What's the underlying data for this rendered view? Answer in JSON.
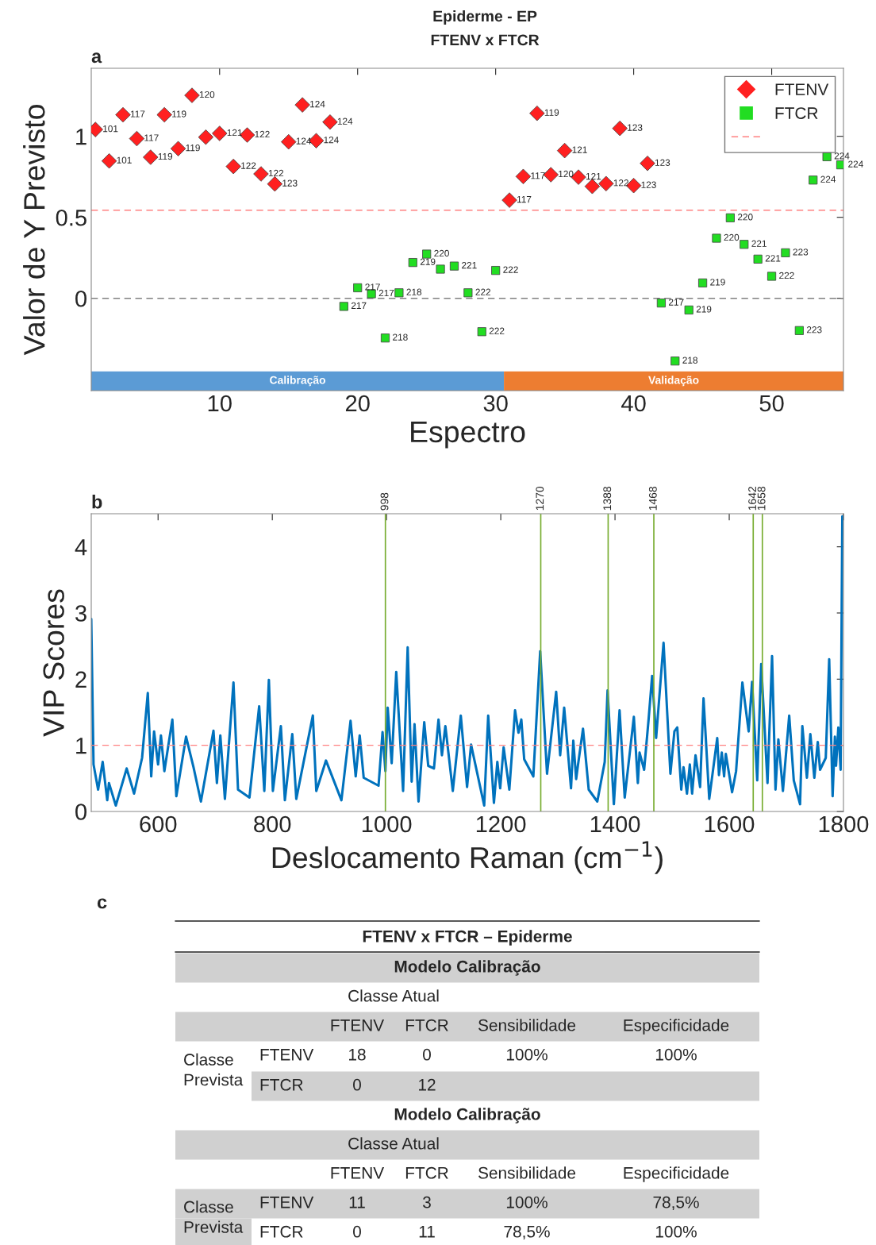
{
  "chart_data": [
    {
      "type": "scatter",
      "title": "Epiderme - EP",
      "subtitle": "FTENV x FTCR",
      "xlabel": "Espectro",
      "ylabel": "Valor de Y Previsto",
      "xlim": [
        0.7,
        55.2
      ],
      "ylim": [
        -0.57,
        1.42
      ],
      "xticks": [
        10,
        20,
        30,
        40,
        50
      ],
      "yticks": [
        0,
        0.5,
        1
      ],
      "legend": "top right",
      "series": [
        {
          "name": "FTENV",
          "color": "#ff2020",
          "marker": "diamond",
          "x": [
            1,
            2,
            3,
            4,
            5,
            6,
            7,
            8,
            9,
            10,
            11,
            12,
            13,
            14,
            15,
            16,
            17,
            18,
            31,
            32,
            33,
            34,
            35,
            36,
            37,
            38,
            39,
            40,
            41
          ],
          "values": [
            1.042,
            0.848,
            1.133,
            0.986,
            0.871,
            1.133,
            0.924,
            1.253,
            0.995,
            1.018,
            0.814,
            1.008,
            0.768,
            0.706,
            0.966,
            1.194,
            0.973,
            1.088,
            0.606,
            0.752,
            1.142,
            0.763,
            0.912,
            0.748,
            0.691,
            0.708,
            1.049,
            0.696,
            0.833
          ]
        },
        {
          "name": "FTCR",
          "color": "#22dd22",
          "marker": "square",
          "x": [
            19,
            20,
            21,
            22,
            23,
            24,
            25,
            26,
            27,
            28,
            29,
            30,
            42,
            43,
            44,
            45,
            46,
            47,
            48,
            49,
            50,
            51,
            52,
            53,
            54,
            55
          ],
          "values": [
            -0.05,
            0.065,
            0.028,
            -0.245,
            0.034,
            0.221,
            0.273,
            0.18,
            0.199,
            0.034,
            -0.206,
            0.172,
            -0.029,
            -0.387,
            -0.072,
            0.095,
            0.371,
            0.497,
            0.333,
            0.242,
            0.136,
            0.281,
            -0.199,
            0.73,
            0.874,
            0.824
          ]
        }
      ],
      "ref_lines": [
        {
          "axis": "y",
          "value": 0.544,
          "color": "#ff8080",
          "line_style": "dashed"
        },
        {
          "axis": "y",
          "value": 0,
          "color": "#808080",
          "line_style": "dashed"
        }
      ],
      "bands": [
        {
          "axis": "x",
          "from": 0.7,
          "to": 30.6,
          "label": "Calibração",
          "color": "#5b9bd5"
        },
        {
          "axis": "x",
          "from": 30.6,
          "to": 55.2,
          "label": "Validação",
          "color": "#ed7d31"
        }
      ],
      "annotations": [
        "a",
        {
          "text": "101",
          "x": 1,
          "y": 1.042
        },
        {
          "text": "101",
          "x": 2,
          "y": 0.848
        },
        {
          "text": "117",
          "x": 3,
          "y": 1.133
        },
        {
          "text": "117",
          "x": 4,
          "y": 0.986
        },
        {
          "text": "119",
          "x": 5,
          "y": 0.871
        },
        {
          "text": "119",
          "x": 6,
          "y": 1.133
        },
        {
          "text": "119",
          "x": 7,
          "y": 0.924
        },
        {
          "text": "120",
          "x": 8,
          "y": 1.253
        },
        {
          "text": "121",
          "x": 10,
          "y": 1.018
        },
        {
          "text": "122",
          "x": 11,
          "y": 0.814
        },
        {
          "text": "122",
          "x": 12,
          "y": 1.008
        },
        {
          "text": "122",
          "x": 13,
          "y": 0.768
        },
        {
          "text": "123",
          "x": 14,
          "y": 0.706
        },
        {
          "text": "124",
          "x": 15,
          "y": 0.966
        },
        {
          "text": "124",
          "x": 16,
          "y": 1.194
        },
        {
          "text": "124",
          "x": 17,
          "y": 0.973
        },
        {
          "text": "124",
          "x": 18,
          "y": 1.088
        },
        {
          "text": "117",
          "x": 31,
          "y": 0.606
        },
        {
          "text": "117",
          "x": 32,
          "y": 0.752
        },
        {
          "text": "119",
          "x": 33,
          "y": 1.142
        },
        {
          "text": "120",
          "x": 34,
          "y": 0.763
        },
        {
          "text": "121",
          "x": 35,
          "y": 0.912
        },
        {
          "text": "121",
          "x": 36,
          "y": 0.748
        },
        {
          "text": "122",
          "x": 38,
          "y": 0.708
        },
        {
          "text": "123",
          "x": 39,
          "y": 1.049
        },
        {
          "text": "123",
          "x": 40,
          "y": 0.696
        },
        {
          "text": "123",
          "x": 41,
          "y": 0.833
        },
        {
          "text": "217",
          "x": 19,
          "y": -0.05
        },
        {
          "text": "217",
          "x": 20,
          "y": 0.065
        },
        {
          "text": "217",
          "x": 21,
          "y": 0.028
        },
        {
          "text": "218",
          "x": 22,
          "y": -0.245
        },
        {
          "text": "218",
          "x": 23,
          "y": 0.034
        },
        {
          "text": "219",
          "x": 24,
          "y": 0.221
        },
        {
          "text": "220",
          "x": 25,
          "y": 0.273
        },
        {
          "text": "221",
          "x": 27,
          "y": 0.199
        },
        {
          "text": "222",
          "x": 28,
          "y": 0.034
        },
        {
          "text": "222",
          "x": 29,
          "y": -0.206
        },
        {
          "text": "222",
          "x": 30,
          "y": 0.172
        },
        {
          "text": "217",
          "x": 42,
          "y": -0.029
        },
        {
          "text": "218",
          "x": 43,
          "y": -0.387
        },
        {
          "text": "219",
          "x": 44,
          "y": -0.072
        },
        {
          "text": "219",
          "x": 45,
          "y": 0.095
        },
        {
          "text": "220",
          "x": 46,
          "y": 0.371
        },
        {
          "text": "220",
          "x": 47,
          "y": 0.497
        },
        {
          "text": "221",
          "x": 48,
          "y": 0.333
        },
        {
          "text": "221",
          "x": 49,
          "y": 0.242
        },
        {
          "text": "222",
          "x": 50,
          "y": 0.136
        },
        {
          "text": "223",
          "x": 51,
          "y": 0.281
        },
        {
          "text": "223",
          "x": 52,
          "y": -0.199
        },
        {
          "text": "224",
          "x": 53,
          "y": 0.73
        },
        {
          "text": "224",
          "x": 54,
          "y": 0.874
        },
        {
          "text": "224",
          "x": 55,
          "y": 0.824
        }
      ]
    },
    {
      "type": "line",
      "xlabel": "Deslocamento Raman (cm$^{−1}$)",
      "ylabel": "VIP Scores",
      "xlim": [
        483,
        1800
      ],
      "ylim": [
        0,
        4.5
      ],
      "xticks": [
        600,
        800,
        1000,
        1200,
        1400,
        1600,
        1800
      ],
      "yticks": [
        0,
        1,
        2,
        3,
        4
      ],
      "series": [
        {
          "color": "#0072bd",
          "x": [
            483,
            487,
            495,
            503,
            511,
            514,
            526,
            545,
            558,
            572,
            582,
            588,
            593,
            600,
            605,
            611,
            625,
            632,
            649,
            662,
            675,
            697,
            703,
            709,
            717,
            732,
            740,
            760,
            777,
            786,
            794,
            801,
            815,
            822,
            835,
            842,
            871,
            877,
            894,
            921,
            937,
            946,
            953,
            960,
            986,
            993,
            998,
            1002,
            1009,
            1017,
            1029,
            1037,
            1044,
            1049,
            1056,
            1066,
            1073,
            1083,
            1091,
            1097,
            1103,
            1116,
            1130,
            1141,
            1148,
            1171,
            1178,
            1188,
            1194,
            1199,
            1205,
            1215,
            1225,
            1231,
            1236,
            1241,
            1257,
            1269,
            1281,
            1297,
            1304,
            1311,
            1323,
            1327,
            1332,
            1335,
            1344,
            1354,
            1369,
            1382,
            1387,
            1398,
            1408,
            1417,
            1433,
            1440,
            1443,
            1451,
            1459,
            1465,
            1472,
            1485,
            1497,
            1504,
            1509,
            1516,
            1520,
            1526,
            1531,
            1535,
            1541,
            1549,
            1555,
            1565,
            1579,
            1582,
            1587,
            1591,
            1594,
            1605,
            1612,
            1623,
            1634,
            1640,
            1649,
            1656,
            1667,
            1675,
            1681,
            1686,
            1694,
            1705,
            1713,
            1724,
            1728,
            1736,
            1742,
            1749,
            1755,
            1759,
            1769,
            1775,
            1781,
            1785,
            1787,
            1791,
            1795,
            1798
          ],
          "values": [
            2.91,
            0.71,
            0.33,
            0.75,
            0.17,
            0.43,
            0.09,
            0.65,
            0.27,
            0.81,
            1.79,
            0.53,
            1.21,
            0.71,
            1.15,
            0.61,
            1.39,
            0.23,
            1.13,
            0.67,
            0.15,
            1.22,
            0.43,
            1.15,
            0.19,
            1.95,
            0.33,
            0.21,
            1.59,
            0.31,
            1.99,
            0.31,
            1.29,
            0.17,
            1.17,
            0.19,
            1.45,
            0.31,
            0.77,
            0.17,
            1.37,
            0.53,
            1.15,
            0.51,
            0.39,
            1.2,
            0.61,
            1.57,
            0.73,
            2.11,
            0.31,
            2.48,
            0.45,
            1.32,
            0.15,
            1.35,
            0.69,
            0.65,
            1.39,
            0.85,
            1.29,
            0.31,
            1.45,
            0.37,
            1.01,
            0.09,
            1.45,
            0.13,
            0.75,
            0.35,
            0.97,
            0.33,
            1.53,
            1.19,
            1.39,
            0.79,
            0.53,
            2.42,
            0.57,
            1.81,
            0.85,
            1.57,
            0.35,
            1.07,
            0.49,
            0.69,
            1.25,
            0.33,
            0.15,
            0.75,
            1.83,
            0.11,
            1.53,
            0.21,
            1.43,
            0.43,
            0.89,
            0.63,
            1.41,
            2.05,
            1.11,
            2.55,
            0.57,
            1.21,
            1.27,
            0.33,
            0.67,
            0.27,
            0.71,
            0.27,
            0.85,
            0.37,
            1.71,
            0.19,
            1.11,
            0.55,
            0.89,
            0.53,
            0.87,
            0.29,
            0.61,
            1.95,
            1.21,
            1.96,
            0.47,
            2.23,
            0.43,
            2.35,
            0.33,
            1.09,
            0.31,
            1.45,
            0.47,
            0.11,
            1.29,
            0.51,
            1.17,
            0.51,
            1.05,
            0.63,
            0.81,
            2.3,
            0.23,
            1.13,
            0.69,
            1.27,
            0.63,
            4.46
          ]
        }
      ],
      "ref_lines": [
        {
          "axis": "y",
          "value": 1,
          "color": "#ff8080",
          "line_style": "dashed"
        },
        {
          "axis": "x",
          "value": 998,
          "label": "998",
          "color": "#77ac30"
        },
        {
          "axis": "x",
          "value": 1270,
          "label": "1270",
          "color": "#77ac30"
        },
        {
          "axis": "x",
          "value": 1388,
          "label": "1388",
          "color": "#77ac30"
        },
        {
          "axis": "x",
          "value": 1468,
          "label": "1468",
          "color": "#77ac30"
        },
        {
          "axis": "x",
          "value": 1642,
          "label": "1642",
          "color": "#77ac30"
        },
        {
          "axis": "x",
          "value": 1658,
          "label": "1658",
          "color": "#77ac30"
        }
      ],
      "annotations": [
        "b"
      ]
    },
    {
      "type": "other",
      "title": "FTENV x FTCR – Epiderme",
      "annotations": [
        "c",
        "Modelo Calibração",
        "Classe Atual",
        "FTENV",
        "FTCR",
        "Sensibilidade",
        "Especificidade",
        "Classe\nPrevista",
        "FTENV",
        "18",
        "0",
        "100%",
        "100%",
        "FTCR",
        "0",
        "12",
        "Modelo Calibração",
        "Classe Atual",
        "FTENV",
        "FTCR",
        "Sensibilidade",
        "Especificidade",
        "Classe\nPrevista",
        "FTENV",
        "11",
        "3",
        "100%",
        "78,5%",
        "FTCR",
        "0",
        "11",
        "78,5%",
        "100%"
      ]
    }
  ]
}
